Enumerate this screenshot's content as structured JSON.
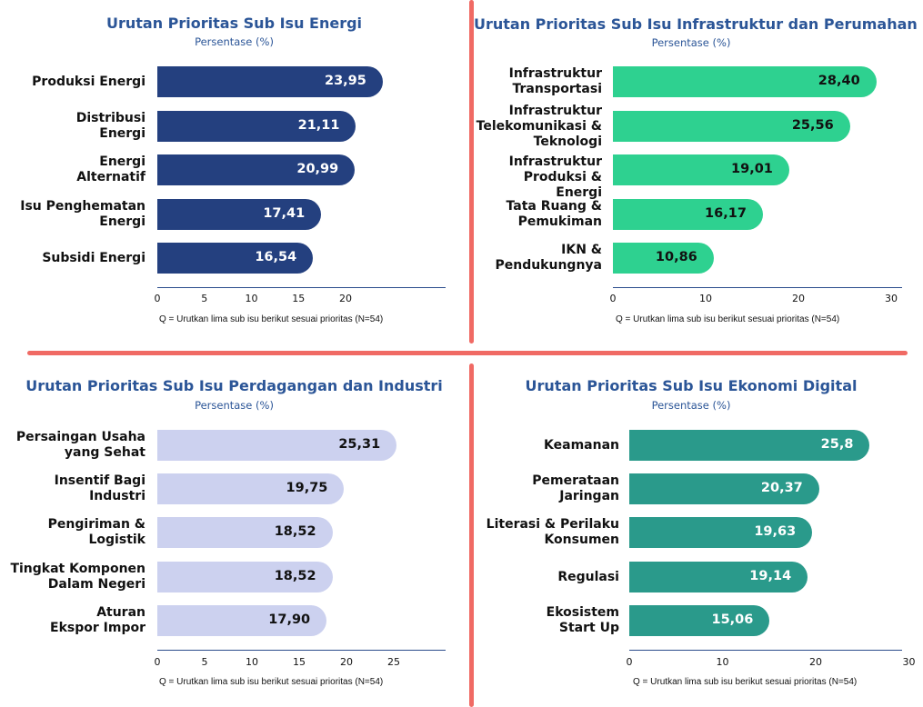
{
  "chart_data": [
    {
      "type": "bar",
      "orientation": "horizontal",
      "title": "Urutan Prioritas Sub Isu Energi",
      "subtitle": "Persentase (%)",
      "categories": [
        "Produksi Energi",
        "Distribusi\nEnergi",
        "Energi\nAlternatif",
        "Isu Penghematan\nEnergi",
        "Subsidi Energi"
      ],
      "values": [
        23.95,
        21.11,
        20.99,
        17.41,
        16.54
      ],
      "value_labels": [
        "23,95",
        "21,11",
        "20,99",
        "17,41",
        "16,54"
      ],
      "xticks": [
        0,
        5,
        10,
        15,
        20
      ],
      "xlim": [
        0,
        30
      ],
      "bar_color": "#24407f",
      "label_color": "#ffffff",
      "footnote": "Q = Urutkan lima sub isu berikut sesuai prioritas (N=54)"
    },
    {
      "type": "bar",
      "orientation": "horizontal",
      "title": "Urutan Prioritas Sub Isu Infrastruktur dan Perumahan",
      "subtitle": "Persentase (%)",
      "categories": [
        "Infrastruktur\nTransportasi",
        "Infrastruktur\nTelekomunikasi &\nTeknologi",
        "Infrastruktur\nProduksi & Energi",
        "Tata Ruang &\nPemukiman",
        "IKN &\nPendukungnya"
      ],
      "values": [
        28.4,
        25.56,
        19.01,
        16.17,
        10.86
      ],
      "value_labels": [
        "28,40",
        "25,56",
        "19,01",
        "16,17",
        "10,86"
      ],
      "xticks": [
        0,
        10,
        20,
        30
      ],
      "xlim": [
        0,
        32
      ],
      "bar_color": "#2ed190",
      "label_color": "#111111",
      "footnote": "Q = Urutkan lima sub isu berikut sesuai prioritas (N=54)"
    },
    {
      "type": "bar",
      "orientation": "horizontal",
      "title": "Urutan Prioritas Sub Isu Perdagangan dan Industri",
      "subtitle": "Persentase (%)",
      "categories": [
        "Persaingan Usaha\nyang Sehat",
        "Insentif Bagi\nIndustri",
        "Pengiriman &\nLogistik",
        "Tingkat Komponen\nDalam Negeri",
        "Aturan\nEkspor Impor"
      ],
      "values": [
        25.31,
        19.75,
        18.52,
        18.52,
        17.9
      ],
      "value_labels": [
        "25,31",
        "19,75",
        "18,52",
        "18,52",
        "17,90"
      ],
      "xticks": [
        0,
        5,
        10,
        15,
        20,
        25
      ],
      "xlim": [
        0,
        30
      ],
      "bar_color": "#ccd1ef",
      "label_color": "#111111",
      "footnote": "Q = Urutkan lima sub isu berikut sesuai prioritas (N=54)"
    },
    {
      "type": "bar",
      "orientation": "horizontal",
      "title": "Urutan Prioritas Sub Isu Ekonomi Digital",
      "subtitle": "Persentase (%)",
      "categories": [
        "Keamanan",
        "Pemerataan\nJaringan",
        "Literasi & Perilaku\nKonsumen",
        "Regulasi",
        "Ekosistem\nStart Up"
      ],
      "values": [
        25.8,
        20.37,
        19.63,
        19.14,
        15.06
      ],
      "value_labels": [
        "25,8",
        "20,37",
        "19,63",
        "19,14",
        "15,06"
      ],
      "xticks": [
        0,
        10,
        20,
        30
      ],
      "xlim": [
        0,
        31
      ],
      "bar_color": "#2a9a8b",
      "label_color": "#ffffff",
      "footnote": "Q = Urutkan lima sub isu berikut sesuai prioritas (N=54)"
    }
  ]
}
